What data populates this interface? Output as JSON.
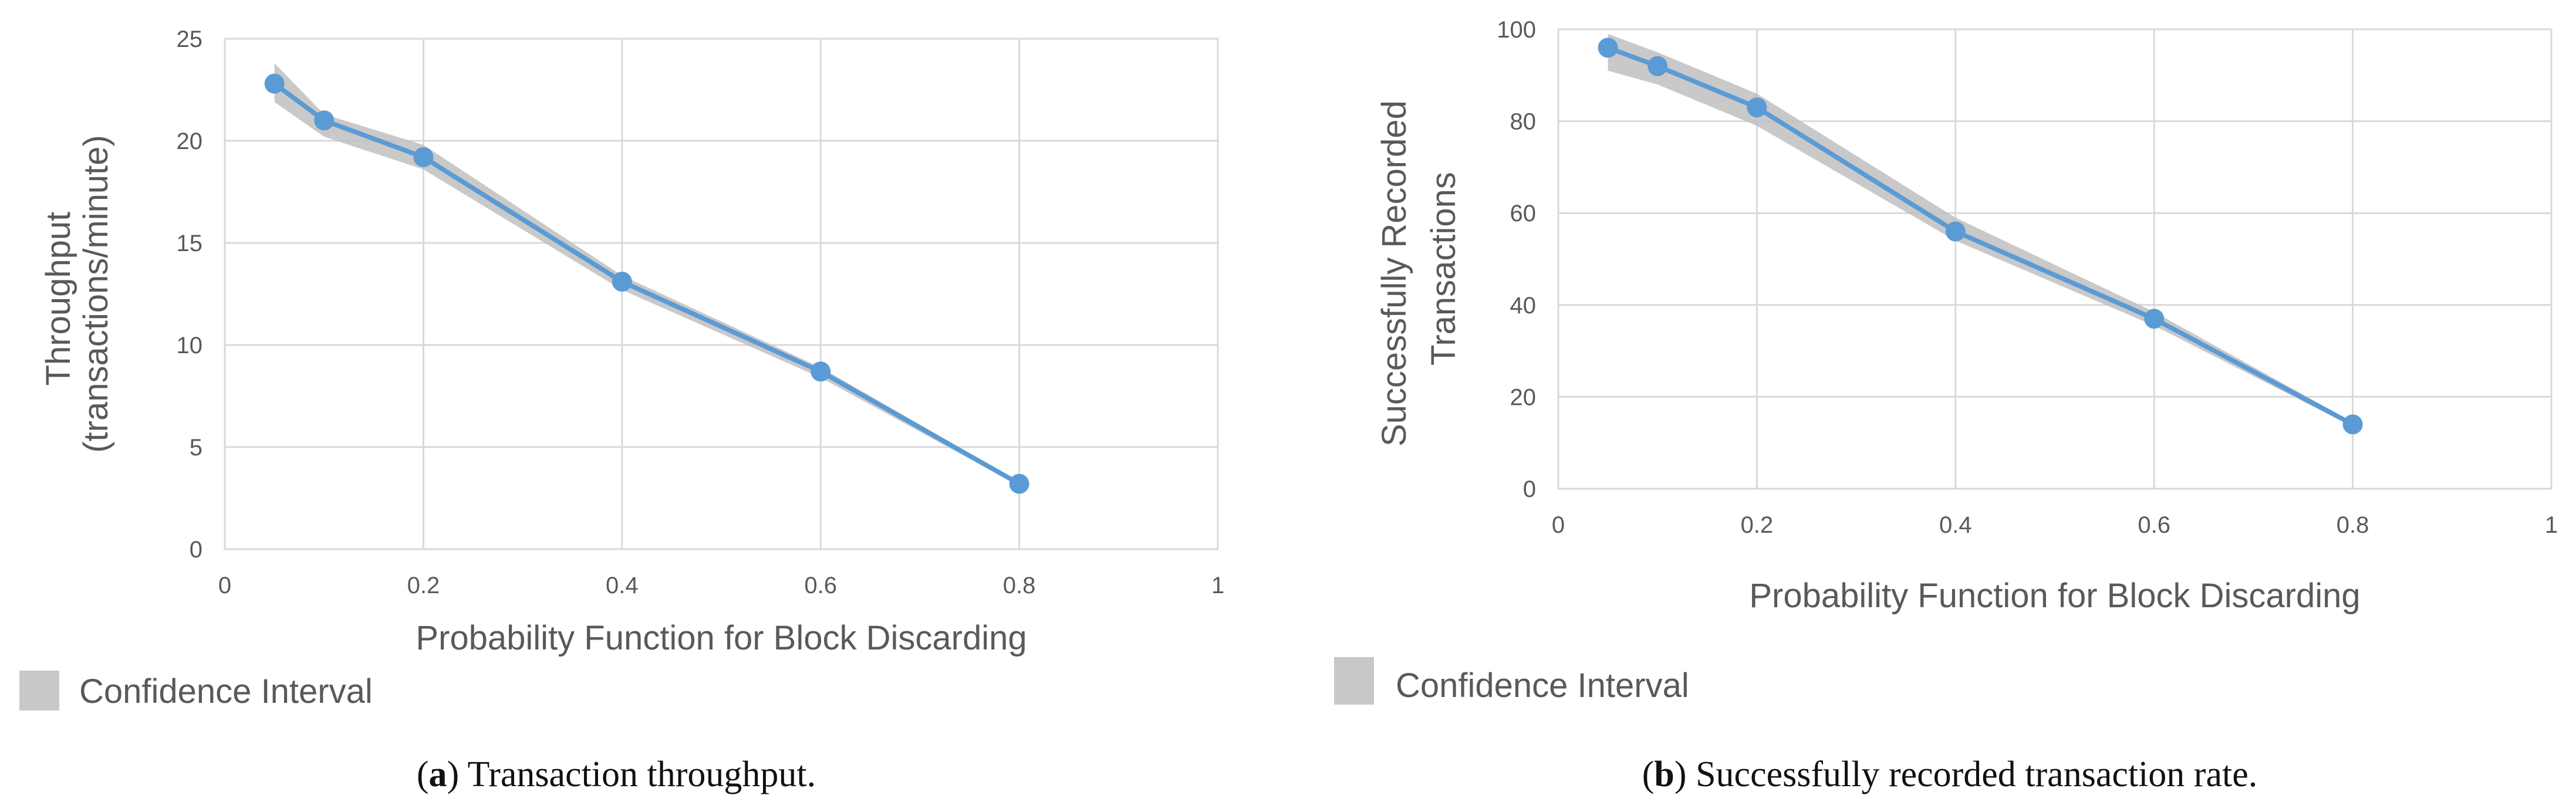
{
  "colors": {
    "line": "#5b9bd5",
    "marker": "#5b9bd5",
    "band": "#bfbfbf",
    "band_swatch": "#c8c8c8"
  },
  "chart_data": [
    {
      "type": "line",
      "title": "",
      "xlabel": "Probability Function for Block Discarding",
      "ylabel_lines": [
        "Throughput",
        "(transactions/minute)"
      ],
      "xlim": [
        0,
        1
      ],
      "ylim": [
        0,
        25
      ],
      "x_ticks": [
        "0",
        "0.2",
        "0.4",
        "0.6",
        "0.8",
        "1"
      ],
      "y_ticks": [
        "0",
        "5",
        "10",
        "15",
        "20",
        "25"
      ],
      "x": [
        0.05,
        0.1,
        0.2,
        0.4,
        0.6,
        0.8
      ],
      "values": [
        22.8,
        21.0,
        19.2,
        13.1,
        8.7,
        3.2
      ],
      "ci_upper": [
        23.8,
        21.3,
        19.8,
        13.4,
        8.9,
        3.3
      ],
      "ci_lower": [
        21.9,
        20.2,
        18.6,
        12.7,
        8.4,
        3.1
      ],
      "legend": {
        "label": "Confidence Interval",
        "position": "bottom-left"
      },
      "caption": {
        "tag": "(a)",
        "tag_letter": "a",
        "text": " Transaction throughput."
      }
    },
    {
      "type": "line",
      "title": "",
      "xlabel": "Probability Function for Block Discarding",
      "ylabel_lines": [
        "Successfully Recorded",
        "Transactions"
      ],
      "xlim": [
        0,
        1
      ],
      "ylim": [
        0,
        100
      ],
      "x_ticks": [
        "0",
        "0.2",
        "0.4",
        "0.6",
        "0.8",
        "1"
      ],
      "y_ticks": [
        "0",
        "20",
        "40",
        "60",
        "80",
        "100"
      ],
      "x": [
        0.05,
        0.1,
        0.2,
        0.4,
        0.6,
        0.8
      ],
      "values": [
        96,
        92,
        83,
        56,
        37,
        14
      ],
      "ci_upper": [
        99,
        95,
        86,
        59,
        38.5,
        14.5
      ],
      "ci_lower": [
        91,
        88,
        79,
        54,
        35.5,
        13.5
      ],
      "legend": {
        "label": "Confidence Interval",
        "position": "bottom-left"
      },
      "caption": {
        "tag": "(b)",
        "tag_letter": "b",
        "text": " Successfully recorded transaction rate."
      }
    }
  ]
}
